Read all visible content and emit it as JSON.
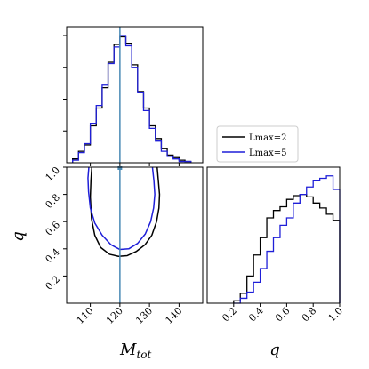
{
  "chart_data": {
    "type": "corner",
    "colors": {
      "black": "#000000",
      "blue": "#1f1fd8",
      "truth": "#4a8ab5"
    },
    "legend": {
      "position": "right of top panel",
      "entries": [
        {
          "label": "Lmax=2",
          "color": "#000000"
        },
        {
          "label": "Lmax=5",
          "color": "#1f1fd8"
        }
      ]
    },
    "truth": {
      "M_tot": 120
    },
    "panels": {
      "mtot_hist": {
        "type": "step-histogram",
        "xlim": [
          102,
          148
        ],
        "ylim": [
          0,
          1.07
        ],
        "edges": [
          104,
          106,
          108,
          110,
          112,
          114,
          116,
          118,
          120,
          122,
          124,
          126,
          128,
          130,
          132,
          134,
          136,
          138,
          140,
          142,
          144
        ],
        "series": [
          {
            "legend_index": 0,
            "values": [
              0.03,
              0.09,
              0.14,
              0.29,
              0.43,
              0.59,
              0.79,
              0.93,
              0.99,
              0.94,
              0.77,
              0.56,
              0.43,
              0.29,
              0.19,
              0.11,
              0.06,
              0.04,
              0.02,
              0.01
            ]
          },
          {
            "legend_index": 1,
            "values": [
              0.02,
              0.08,
              0.15,
              0.31,
              0.45,
              0.61,
              0.78,
              0.91,
              1.0,
              0.92,
              0.75,
              0.55,
              0.41,
              0.27,
              0.17,
              0.09,
              0.05,
              0.03,
              0.01,
              0.01
            ]
          }
        ]
      },
      "q_hist": {
        "type": "step-histogram",
        "xlim": [
          0.0,
          1.0
        ],
        "ylim": [
          0,
          1.1
        ],
        "edges": [
          0.2,
          0.25,
          0.3,
          0.35,
          0.4,
          0.45,
          0.5,
          0.55,
          0.6,
          0.65,
          0.7,
          0.75,
          0.8,
          0.85,
          0.9,
          0.95,
          1.0
        ],
        "series": [
          {
            "legend_index": 0,
            "values": [
              0.02,
              0.08,
              0.22,
              0.39,
              0.53,
              0.69,
              0.75,
              0.78,
              0.84,
              0.87,
              0.88,
              0.86,
              0.81,
              0.77,
              0.72,
              0.67
            ]
          },
          {
            "legend_index": 1,
            "values": [
              0.0,
              0.04,
              0.09,
              0.17,
              0.28,
              0.42,
              0.53,
              0.63,
              0.69,
              0.81,
              0.88,
              0.94,
              0.99,
              1.01,
              1.03,
              0.92
            ]
          }
        ],
        "xticks": [
          0.2,
          0.4,
          0.6,
          0.8,
          1.0
        ],
        "xticklabels": [
          "0.2",
          "0.4",
          "0.6",
          "0.8",
          "1.0"
        ],
        "xlabel": "q"
      },
      "joint": {
        "type": "contour",
        "xlim": [
          102,
          148
        ],
        "ylim": [
          0.0,
          1.0
        ],
        "xticks": [
          110,
          120,
          130,
          140
        ],
        "xticklabels": [
          "110",
          "120",
          "130",
          "140"
        ],
        "yticks": [
          0.2,
          0.4,
          0.6,
          0.8,
          1.0
        ],
        "yticklabels": [
          "0.2",
          "0.4",
          "0.6",
          "0.8",
          "1.0"
        ],
        "xlabel_main": "M",
        "xlabel_sub": "tot",
        "ylabel": "q",
        "contours": [
          {
            "legend_index": 0,
            "points": [
              [
                110.5,
                1.0
              ],
              [
                110.2,
                0.9
              ],
              [
                110.0,
                0.78
              ],
              [
                110.4,
                0.62
              ],
              [
                111.5,
                0.5
              ],
              [
                113.5,
                0.41
              ],
              [
                116.5,
                0.36
              ],
              [
                119.5,
                0.345
              ],
              [
                122.5,
                0.35
              ],
              [
                125.5,
                0.38
              ],
              [
                128.5,
                0.43
              ],
              [
                130.8,
                0.5
              ],
              [
                132.4,
                0.6
              ],
              [
                133.2,
                0.7
              ],
              [
                133.4,
                0.8
              ],
              [
                133.0,
                0.9
              ],
              [
                132.6,
                1.0
              ]
            ]
          },
          {
            "legend_index": 1,
            "points": [
              [
                109.5,
                1.0
              ],
              [
                109.2,
                0.92
              ],
              [
                109.4,
                0.82
              ],
              [
                110.0,
                0.7
              ],
              [
                111.5,
                0.59
              ],
              [
                114.0,
                0.5
              ],
              [
                117.0,
                0.43
              ],
              [
                120.0,
                0.395
              ],
              [
                123.0,
                0.4
              ],
              [
                126.0,
                0.44
              ],
              [
                128.6,
                0.51
              ],
              [
                130.4,
                0.6
              ],
              [
                131.4,
                0.7
              ],
              [
                131.8,
                0.8
              ],
              [
                131.5,
                0.9
              ],
              [
                131.0,
                1.0
              ]
            ]
          }
        ]
      }
    }
  }
}
